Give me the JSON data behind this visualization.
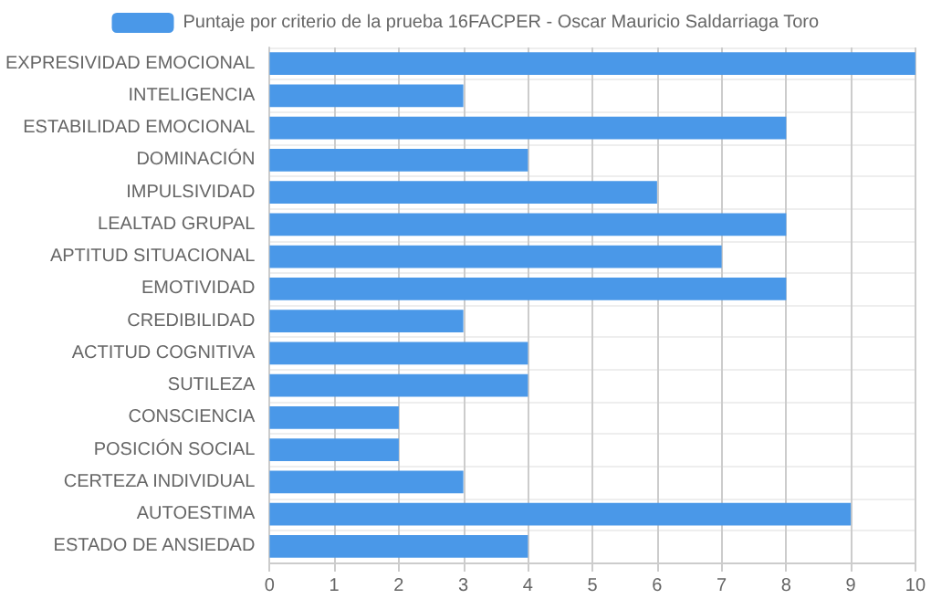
{
  "chart_data": {
    "type": "bar",
    "orientation": "horizontal",
    "categories": [
      "EXPRESIVIDAD EMOCIONAL",
      "INTELIGENCIA",
      "ESTABILIDAD EMOCIONAL",
      "DOMINACIÓN",
      "IMPULSIVIDAD",
      "LEALTAD GRUPAL",
      "APTITUD SITUACIONAL",
      "EMOTIVIDAD",
      "CREDIBILIDAD",
      "ACTITUD COGNITIVA",
      "SUTILEZA",
      "CONSCIENCIA",
      "POSICIÓN SOCIAL",
      "CERTEZA INDIVIDUAL",
      "AUTOESTIMA",
      "ESTADO DE ANSIEDAD"
    ],
    "series": [
      {
        "name": "Puntaje por criterio de la prueba 16FACPER - Oscar Mauricio Saldarriaga Toro",
        "color": "#4a98e8",
        "values": [
          10,
          3,
          8,
          4,
          6,
          8,
          7,
          8,
          3,
          4,
          4,
          2,
          2,
          3,
          9,
          4
        ]
      }
    ],
    "xlim": [
      0,
      10
    ],
    "xticks": [
      0,
      1,
      2,
      3,
      4,
      5,
      6,
      7,
      8,
      9,
      10
    ],
    "grid": true,
    "legend": "top"
  }
}
